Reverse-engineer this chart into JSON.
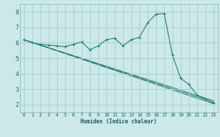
{
  "xlabel": "Humidex (Indice chaleur)",
  "bg_color": "#cce8e8",
  "grid_color": "#aacfcf",
  "line_color": "#1a7a6e",
  "xlim": [
    -0.5,
    23.5
  ],
  "ylim": [
    1.5,
    8.5
  ],
  "xticks": [
    0,
    1,
    2,
    3,
    4,
    5,
    6,
    7,
    8,
    9,
    10,
    11,
    12,
    13,
    14,
    15,
    16,
    17,
    18,
    19,
    20,
    21,
    22,
    23
  ],
  "yticks": [
    2,
    3,
    4,
    5,
    6,
    7,
    8
  ],
  "main_x": [
    0,
    1,
    2,
    3,
    4,
    5,
    6,
    7,
    8,
    9,
    10,
    11,
    12,
    13,
    14,
    15,
    16,
    17,
    18,
    19,
    20,
    21,
    22,
    23
  ],
  "main_y": [
    6.2,
    6.0,
    5.9,
    5.85,
    5.8,
    5.75,
    5.9,
    6.05,
    5.55,
    5.8,
    6.2,
    6.3,
    5.8,
    6.2,
    6.35,
    7.3,
    7.85,
    7.9,
    5.2,
    3.7,
    3.3,
    2.6,
    2.35,
    2.1
  ],
  "straight_lines": [
    {
      "x": [
        0,
        23
      ],
      "y": [
        6.2,
        2.05
      ]
    },
    {
      "x": [
        0,
        23
      ],
      "y": [
        6.2,
        2.15
      ]
    },
    {
      "x": [
        0,
        23
      ],
      "y": [
        6.2,
        2.25
      ]
    }
  ]
}
